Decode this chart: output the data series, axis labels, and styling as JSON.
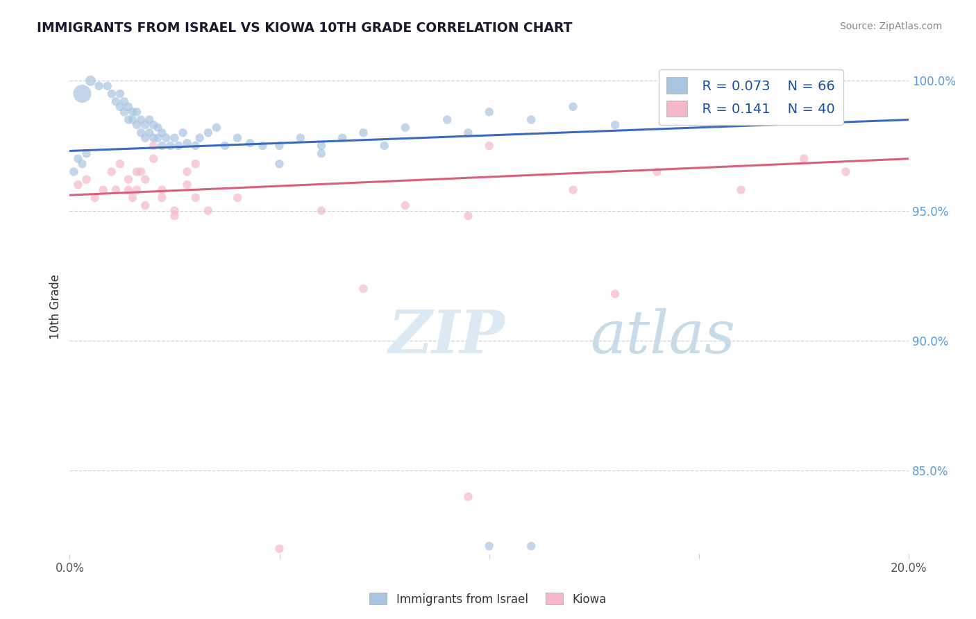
{
  "title": "IMMIGRANTS FROM ISRAEL VS KIOWA 10TH GRADE CORRELATION CHART",
  "source": "Source: ZipAtlas.com",
  "ylabel": "10th Grade",
  "xlim": [
    0.0,
    0.2
  ],
  "ylim": [
    0.818,
    1.008
  ],
  "xticks": [
    0.0,
    0.05,
    0.1,
    0.15,
    0.2
  ],
  "xtick_labels": [
    "0.0%",
    "",
    "",
    "",
    "20.0%"
  ],
  "ytick_labels_right": [
    "85.0%",
    "90.0%",
    "95.0%",
    "100.0%"
  ],
  "yticks_right": [
    0.85,
    0.9,
    0.95,
    1.0
  ],
  "blue_R": 0.073,
  "blue_N": 66,
  "pink_R": 0.141,
  "pink_N": 40,
  "blue_color": "#a8c4e0",
  "pink_color": "#f4b8c8",
  "blue_line_color": "#3a6bbf",
  "pink_line_color": "#d9607a",
  "legend_label_blue": "Immigrants from Israel",
  "legend_label_pink": "Kiowa",
  "blue_line_x": [
    0.0,
    0.2
  ],
  "blue_line_y": [
    0.973,
    0.985
  ],
  "pink_line_x": [
    0.0,
    0.2
  ],
  "pink_line_y": [
    0.956,
    0.97
  ],
  "blue_x": [
    0.003,
    0.005,
    0.007,
    0.009,
    0.01,
    0.011,
    0.012,
    0.012,
    0.013,
    0.013,
    0.014,
    0.014,
    0.015,
    0.015,
    0.016,
    0.016,
    0.017,
    0.017,
    0.018,
    0.018,
    0.019,
    0.019,
    0.02,
    0.02,
    0.021,
    0.021,
    0.022,
    0.022,
    0.023,
    0.024,
    0.025,
    0.026,
    0.027,
    0.028,
    0.03,
    0.031,
    0.033,
    0.035,
    0.037,
    0.04,
    0.043,
    0.046,
    0.05,
    0.055,
    0.06,
    0.065,
    0.07,
    0.075,
    0.08,
    0.09,
    0.095,
    0.1,
    0.11,
    0.12,
    0.13,
    0.145,
    0.155,
    0.165,
    0.1,
    0.11,
    0.05,
    0.06,
    0.001,
    0.002,
    0.003,
    0.004
  ],
  "blue_y": [
    0.995,
    1.0,
    0.998,
    0.998,
    0.995,
    0.992,
    0.99,
    0.995,
    0.988,
    0.992,
    0.985,
    0.99,
    0.985,
    0.988,
    0.983,
    0.988,
    0.98,
    0.985,
    0.978,
    0.983,
    0.98,
    0.985,
    0.978,
    0.983,
    0.978,
    0.982,
    0.975,
    0.98,
    0.978,
    0.975,
    0.978,
    0.975,
    0.98,
    0.976,
    0.975,
    0.978,
    0.98,
    0.982,
    0.975,
    0.978,
    0.976,
    0.975,
    0.975,
    0.978,
    0.975,
    0.978,
    0.98,
    0.975,
    0.982,
    0.985,
    0.98,
    0.988,
    0.985,
    0.99,
    0.983,
    0.985,
    0.988,
    0.99,
    0.821,
    0.821,
    0.968,
    0.972,
    0.965,
    0.97,
    0.968,
    0.972
  ],
  "blue_sizes": [
    350,
    120,
    80,
    80,
    80,
    80,
    80,
    80,
    80,
    80,
    80,
    80,
    80,
    80,
    80,
    80,
    80,
    80,
    80,
    80,
    80,
    80,
    80,
    80,
    80,
    80,
    80,
    80,
    80,
    80,
    80,
    80,
    80,
    80,
    80,
    80,
    80,
    80,
    80,
    80,
    80,
    80,
    80,
    80,
    80,
    80,
    80,
    80,
    80,
    80,
    80,
    80,
    80,
    80,
    80,
    80,
    80,
    80,
    80,
    80,
    80,
    80,
    80,
    80,
    80,
    80
  ],
  "pink_x": [
    0.002,
    0.004,
    0.006,
    0.008,
    0.01,
    0.011,
    0.012,
    0.014,
    0.015,
    0.016,
    0.017,
    0.018,
    0.02,
    0.022,
    0.025,
    0.028,
    0.03,
    0.033,
    0.014,
    0.016,
    0.018,
    0.02,
    0.022,
    0.025,
    0.028,
    0.03,
    0.04,
    0.06,
    0.08,
    0.1,
    0.12,
    0.14,
    0.16,
    0.175,
    0.185,
    0.13,
    0.095,
    0.07,
    0.095,
    0.05
  ],
  "pink_y": [
    0.96,
    0.962,
    0.955,
    0.958,
    0.965,
    0.958,
    0.968,
    0.962,
    0.955,
    0.958,
    0.965,
    0.962,
    0.97,
    0.955,
    0.95,
    0.96,
    0.955,
    0.95,
    0.958,
    0.965,
    0.952,
    0.975,
    0.958,
    0.948,
    0.965,
    0.968,
    0.955,
    0.95,
    0.952,
    0.975,
    0.958,
    0.965,
    0.958,
    0.97,
    0.965,
    0.918,
    0.948,
    0.92,
    0.84,
    0.82
  ],
  "pink_sizes": [
    80,
    80,
    80,
    80,
    80,
    80,
    80,
    80,
    80,
    80,
    80,
    80,
    80,
    80,
    80,
    80,
    80,
    80,
    80,
    80,
    80,
    80,
    80,
    80,
    80,
    80,
    80,
    80,
    80,
    80,
    80,
    80,
    80,
    80,
    80,
    80,
    80,
    80,
    80,
    80
  ]
}
